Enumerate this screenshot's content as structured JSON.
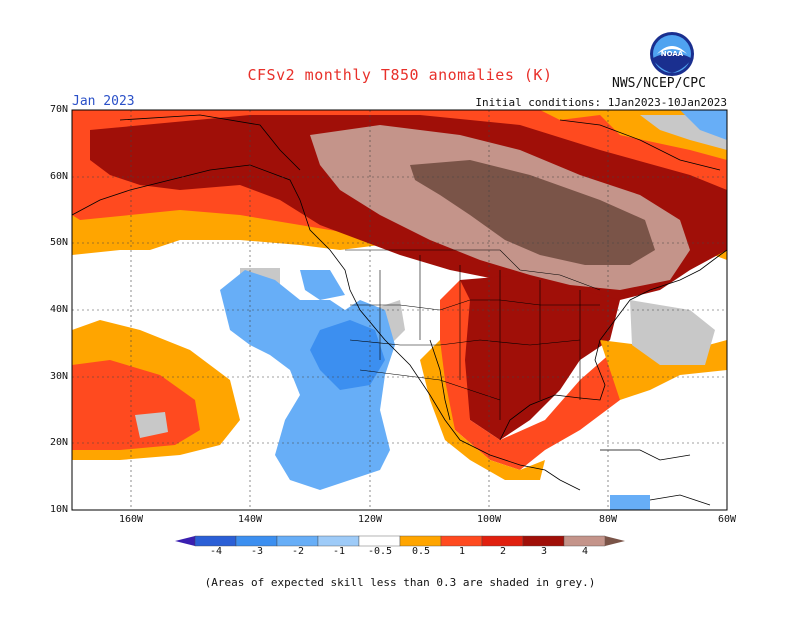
{
  "header": {
    "title": "CFSv2 monthly T850 anomalies (K)",
    "org": "NWS/NCEP/CPC",
    "logo_text": "NOAA",
    "month": "Jan 2023",
    "initial_conditions": "Initial conditions: 1Jan2023-10Jan2023"
  },
  "map": {
    "latitude_labels": [
      "70N",
      "60N",
      "50N",
      "40N",
      "30N",
      "20N",
      "10N"
    ],
    "longitude_labels": [
      "160W",
      "140W",
      "120W",
      "100W",
      "80W",
      "60W"
    ],
    "extent": {
      "lon_min": -170,
      "lon_max": -60,
      "lat_min": 10,
      "lat_max": 70
    }
  },
  "colorbar": {
    "labels": [
      "-4",
      "-3",
      "-2",
      "-1",
      "-0.5",
      "0.5",
      "1",
      "2",
      "3",
      "4"
    ],
    "colors": [
      "#3a1fb0",
      "#2b5fd6",
      "#3c8ff0",
      "#67aef7",
      "#9ecbf8",
      "#ffffff",
      "#ffa500",
      "#ff4a1f",
      "#e0200f",
      "#a00f08",
      "#c4948a",
      "#7a5448"
    ]
  },
  "footnote": "(Areas of expected skill less than 0.3 are shaded in grey.)"
}
